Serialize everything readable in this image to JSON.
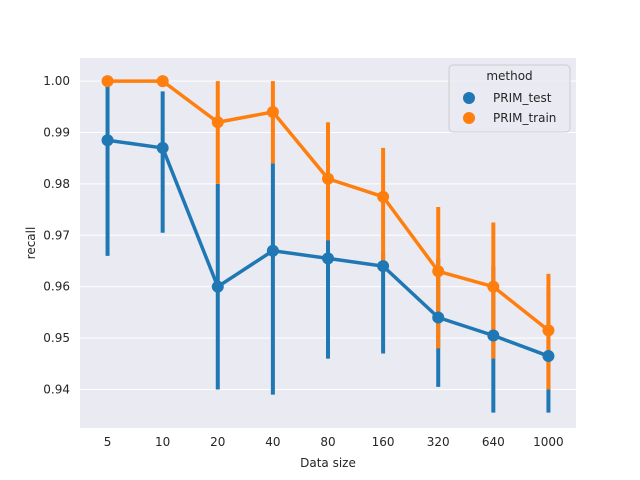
{
  "chart_data": {
    "type": "line",
    "chart_style": "point plot with error bars",
    "title": "",
    "xlabel": "Data size",
    "ylabel": "recall",
    "categories": [
      "5",
      "10",
      "20",
      "40",
      "80",
      "160",
      "320",
      "640",
      "1000"
    ],
    "y_ticks": [
      "0.94",
      "0.95",
      "0.96",
      "0.97",
      "0.98",
      "0.99",
      "1.00"
    ],
    "ylim": [
      0.9325,
      1.0045
    ],
    "grid": true,
    "legend": {
      "title": "method",
      "placement": "top-right"
    },
    "series": [
      {
        "name": "PRIM_test",
        "color": "#1f77b4",
        "values": [
          0.9885,
          0.987,
          0.96,
          0.967,
          0.9655,
          0.964,
          0.954,
          0.9505,
          0.9465
        ],
        "ci_low": [
          0.966,
          0.9705,
          0.94,
          0.939,
          0.946,
          0.947,
          0.9405,
          0.9355,
          0.9355
        ],
        "ci_high": [
          1.0,
          0.998,
          0.98,
          0.984,
          0.9695,
          0.9665,
          0.9655,
          0.964,
          0.9595
        ]
      },
      {
        "name": "PRIM_train",
        "color": "#ff7f0e",
        "values": [
          1.0,
          1.0,
          0.992,
          0.994,
          0.981,
          0.9775,
          0.963,
          0.96,
          0.9515
        ],
        "ci_low": [
          1.0,
          1.0,
          0.98,
          0.984,
          0.969,
          0.964,
          0.948,
          0.946,
          0.94
        ],
        "ci_high": [
          1.0,
          1.0,
          1.0,
          1.0,
          0.992,
          0.987,
          0.9755,
          0.9725,
          0.9625
        ]
      }
    ],
    "plot_background": "#eaeaf2"
  }
}
